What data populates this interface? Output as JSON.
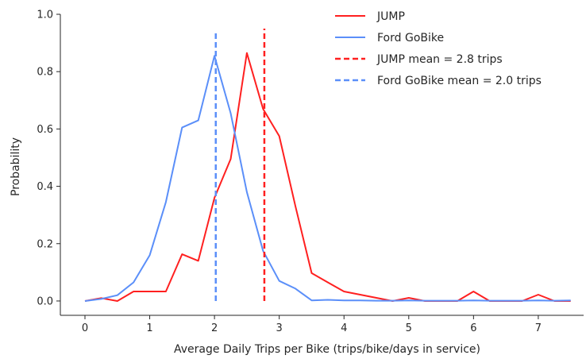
{
  "chart_data": {
    "type": "line",
    "xlabel": "Average Daily Trips per Bike (trips/bike/days in service)",
    "ylabel": "Probability",
    "xlim": [
      -0.38,
      7.7
    ],
    "ylim": [
      -0.05,
      1.0
    ],
    "x_ticks": [
      0,
      1,
      2,
      3,
      4,
      5,
      6,
      7
    ],
    "x_tick_labels": [
      "0",
      "1",
      "2",
      "3",
      "4",
      "5",
      "6",
      "7"
    ],
    "y_ticks": [
      0.0,
      0.2,
      0.4,
      0.6,
      0.8,
      1.0
    ],
    "y_tick_labels": [
      "0.0",
      "0.2",
      "0.4",
      "0.6",
      "0.8",
      "1.0"
    ],
    "grid": false,
    "legend_position": "top-right",
    "series": [
      {
        "name": "JUMP",
        "color": "#ff2020",
        "style": "solid",
        "x": [
          0,
          0.25,
          0.5,
          0.75,
          1.0,
          1.25,
          1.5,
          1.75,
          2.0,
          2.25,
          2.5,
          2.75,
          3.0,
          3.25,
          3.5,
          3.75,
          4.0,
          4.25,
          4.5,
          4.75,
          5.0,
          5.25,
          5.5,
          5.75,
          6.0,
          6.25,
          6.5,
          6.75,
          7.0,
          7.25,
          7.5
        ],
        "y": [
          0.0,
          0.01,
          0.0,
          0.033,
          0.033,
          0.033,
          0.163,
          0.14,
          0.36,
          0.495,
          0.865,
          0.67,
          0.575,
          0.33,
          0.097,
          0.065,
          0.033,
          0.022,
          0.011,
          0.0,
          0.011,
          0.0,
          0.0,
          0.0,
          0.033,
          0.0,
          0.0,
          0.0,
          0.022,
          0.0,
          0.0
        ]
      },
      {
        "name": "Ford GoBike",
        "color": "#5b8ff9",
        "style": "solid",
        "x": [
          0,
          0.25,
          0.5,
          0.75,
          1.0,
          1.25,
          1.5,
          1.75,
          2.0,
          2.25,
          2.5,
          2.75,
          3.0,
          3.25,
          3.5,
          3.75,
          4.0,
          4.25,
          4.5,
          4.75,
          5.0,
          5.25,
          5.5,
          5.75,
          6.0,
          6.25,
          6.5,
          6.75,
          7.0,
          7.25,
          7.5
        ],
        "y": [
          0.0,
          0.007,
          0.02,
          0.065,
          0.16,
          0.345,
          0.605,
          0.63,
          0.855,
          0.655,
          0.38,
          0.175,
          0.07,
          0.043,
          0.002,
          0.004,
          0.002,
          0.002,
          0.001,
          0.001,
          0.002,
          0.001,
          0.001,
          0.001,
          0.002,
          0.001,
          0.001,
          0.001,
          0.002,
          0.001,
          0.002
        ]
      }
    ],
    "vertical_lines": [
      {
        "name": "JUMP mean = 2.8 trips",
        "x": 2.77,
        "y_range": [
          0.0,
          0.95
        ],
        "color": "#ff2020",
        "style": "dashed"
      },
      {
        "name": "Ford GoBike mean = 2.0 trips",
        "x": 2.02,
        "y_range": [
          0.0,
          0.935
        ],
        "color": "#5b8ff9",
        "style": "dashed"
      }
    ],
    "legend": [
      {
        "label": "JUMP",
        "color": "#ff2020",
        "style": "solid"
      },
      {
        "label": "Ford GoBike",
        "color": "#5b8ff9",
        "style": "solid"
      },
      {
        "label": "JUMP mean = 2.8 trips",
        "color": "#ff2020",
        "style": "dashed"
      },
      {
        "label": "Ford GoBike mean = 2.0 trips",
        "color": "#5b8ff9",
        "style": "dashed"
      }
    ]
  }
}
